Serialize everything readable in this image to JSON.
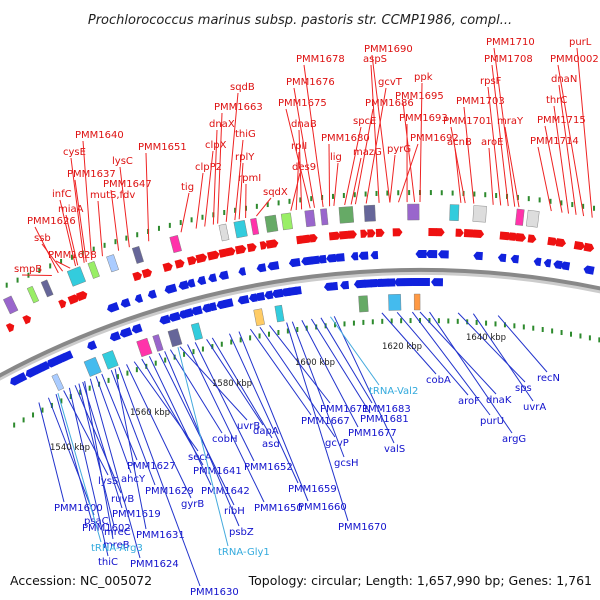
{
  "title": "Prochlorococcus marinus subsp. pastoris str. CCMP1986, compl...",
  "footer": {
    "accession": "Accession: NC_005072",
    "topology": "Topology: circular; Length: 1,657,990 bp; Genes: 1,761"
  },
  "colors": {
    "forward_label": "#dd1111",
    "reverse_label": "#1111cc",
    "rna_label": "#33aadd",
    "forward_arrow": "#ee1111",
    "reverse_arrow": "#1122dd",
    "backbone": "#888888",
    "tick": "#2d8a2d"
  },
  "position_labels": [
    "1540 kbp",
    "1560 kbp",
    "1580 kbp",
    "1600 kbp",
    "1620 kbp",
    "1640 kbp"
  ],
  "forward_genes": [
    "smpB",
    "PMM1628",
    "ssb",
    "PMM1626",
    "miaA",
    "infC",
    "PMM1637",
    "cysE",
    "PMM1640",
    "mutS,fdv",
    "PMM1647",
    "lysC",
    "PMM1651",
    "tig",
    "clpP2",
    "clpX",
    "dnaX",
    "PMM1663",
    "sqdB",
    "thiG",
    "rplY",
    "rpmI",
    "sqdX",
    "des9",
    "rplI",
    "dnaB",
    "PMM1675",
    "PMM1676",
    "PMM1678",
    "PMM1680",
    "lig",
    "spcE",
    "mazG",
    "PMM1686",
    "gcvT",
    "aspS",
    "PMM1690",
    "pyrG",
    "PMM1692",
    "PMM1693",
    "PMM1695",
    "ppk",
    "acnB",
    "PMM1701",
    "PMM1703",
    "aroE",
    "rpsF",
    "PMM1708",
    "PMM1710",
    "mraY",
    "PMM1714",
    "PMM1715",
    "thrC",
    "dnaN",
    "PMM0002",
    "purL"
  ],
  "reverse_genes": [
    "PMM1600",
    "psaC",
    "PMM1602",
    "lysS",
    "thiC",
    "ruvB",
    "mreC",
    "mreB",
    "PMM1624",
    "PMM1619",
    "ahcY",
    "PMM1627",
    "PMM1629",
    "PMM1631",
    "PMM1630",
    "gyrB",
    "secA",
    "PMM1641",
    "PMM1642",
    "ribH",
    "psbZ",
    "cobH",
    "uvrB",
    "PMM1650",
    "PMM1652",
    "dapA",
    "asd",
    "PMM1659",
    "PMM1660",
    "PMM1667",
    "gcvP",
    "PMM1671",
    "PMM1681",
    "PMM1677",
    "gcsH",
    "PMM1670",
    "PMM1683",
    "valS",
    "cobA",
    "aroF",
    "purU",
    "dnaK",
    "argG",
    "sps",
    "uvrA",
    "recN"
  ],
  "rna_genes": [
    "tRNA-Arg3",
    "tRNA-Gly1",
    "tRNA-Val2"
  ]
}
